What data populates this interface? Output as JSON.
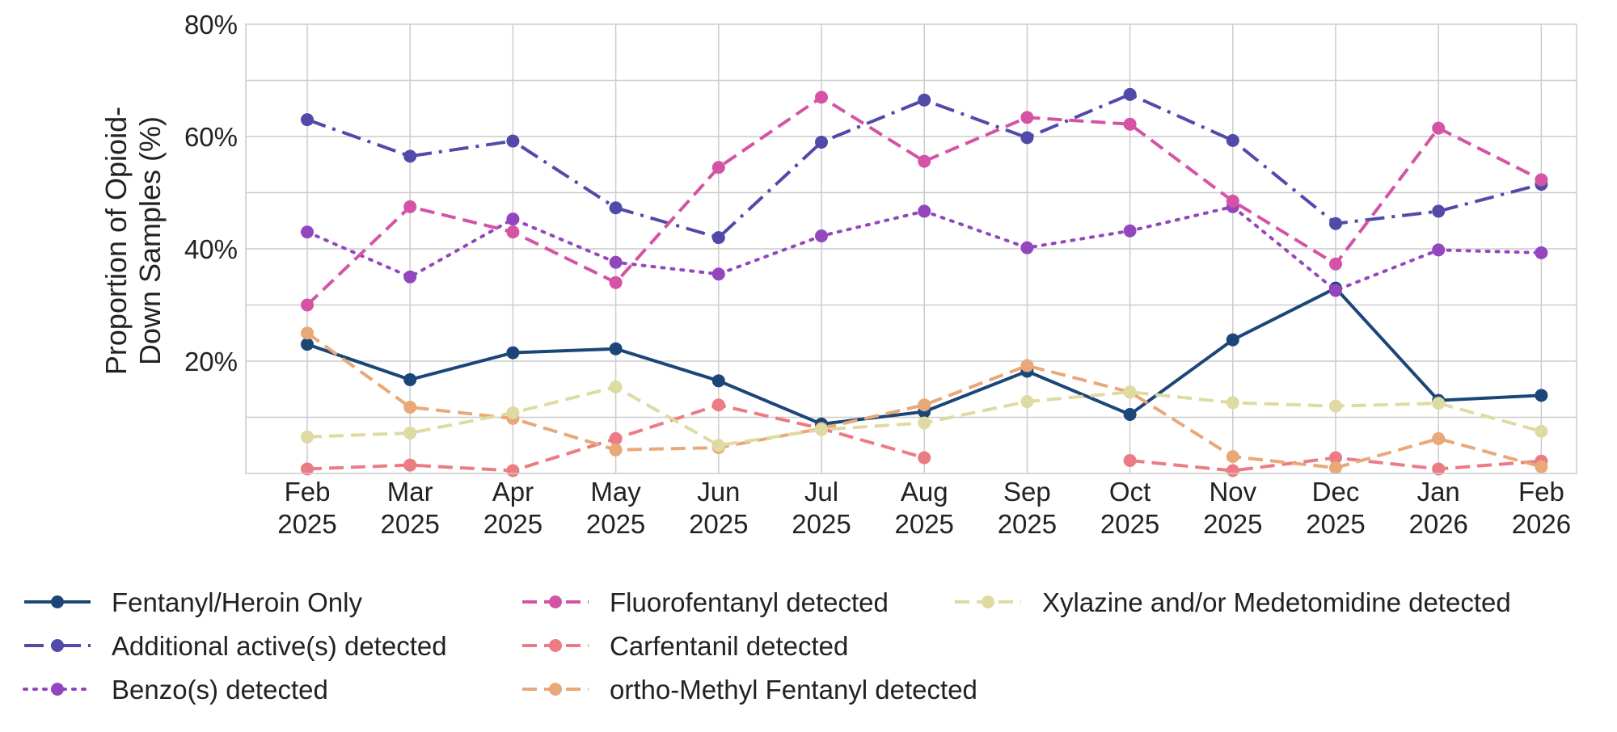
{
  "chart_data": {
    "type": "line",
    "title": "",
    "xlabel": "",
    "ylabel": "Proportion of Opioid-\nDown Samples (%)",
    "categories": [
      "Feb\n2025",
      "Mar\n2025",
      "Apr\n2025",
      "May\n2025",
      "Jun\n2025",
      "Jul\n2025",
      "Aug\n2025",
      "Sep\n2025",
      "Oct\n2025",
      "Nov\n2025",
      "Dec\n2025",
      "Jan\n2026",
      "Feb\n2026"
    ],
    "ylim": [
      0,
      80
    ],
    "yticks": [
      20,
      40,
      60,
      80
    ],
    "ytick_labels": [
      "20%",
      "40%",
      "60%",
      "80%"
    ],
    "grid": true,
    "legend_position": "bottom",
    "series": [
      {
        "name": "Fentanyl/Heroin Only",
        "color": "#1b4677",
        "dash": "solid",
        "values": [
          23,
          16.7,
          21.5,
          22.2,
          16.5,
          8.8,
          11,
          18.2,
          10.5,
          23.8,
          33,
          13,
          13.9
        ]
      },
      {
        "name": "Additional active(s) detected",
        "color": "#524aa9",
        "dash": "dashdot",
        "values": [
          63,
          56.5,
          59.2,
          47.3,
          42,
          59,
          66.5,
          59.8,
          67.5,
          59.3,
          44.5,
          46.7,
          51.5
        ]
      },
      {
        "name": "Benzo(s) detected",
        "color": "#9446bd",
        "dash": "dotted",
        "values": [
          43,
          35,
          45.3,
          37.6,
          35.5,
          42.3,
          46.7,
          40.2,
          43.2,
          47.5,
          32.6,
          39.8,
          39.3
        ]
      },
      {
        "name": "Fluorofentanyl detected",
        "color": "#d553a5",
        "dash": "dashed",
        "values": [
          30,
          47.5,
          43,
          34,
          54.5,
          67,
          55.6,
          63.4,
          62.2,
          48.5,
          37.3,
          61.5,
          52.3
        ]
      },
      {
        "name": "Carfentanil detected",
        "color": "#ec7b83",
        "dash": "dashed",
        "values": [
          0.8,
          1.5,
          0.5,
          6.2,
          12.2,
          8,
          2.8,
          null,
          2.3,
          0.5,
          2.8,
          0.8,
          2.2
        ]
      },
      {
        "name": "ortho-Methyl Fentanyl detected",
        "color": "#e8a878",
        "dash": "dashed",
        "values": [
          25,
          11.8,
          9.8,
          4.2,
          4.6,
          8,
          12.2,
          19.2,
          14.5,
          3,
          1,
          6.2,
          1.2
        ]
      },
      {
        "name": "Xylazine and/or Medetomidine detected",
        "color": "#dedba2",
        "dash": "dashed",
        "values": [
          6.5,
          7.2,
          10.8,
          15.4,
          5,
          7.8,
          9,
          12.8,
          14.5,
          12.6,
          12,
          12.5,
          7.5
        ]
      }
    ]
  }
}
